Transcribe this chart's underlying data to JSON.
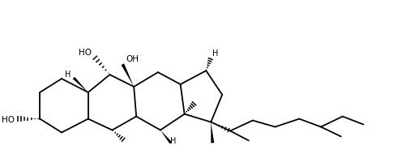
{
  "bg_color": "#ffffff",
  "line_color": "#000000",
  "lw": 1.3,
  "fig_width": 5.01,
  "fig_height": 2.07,
  "dpi": 100,
  "xlim": [
    0,
    501
  ],
  "ylim": [
    207,
    0
  ]
}
